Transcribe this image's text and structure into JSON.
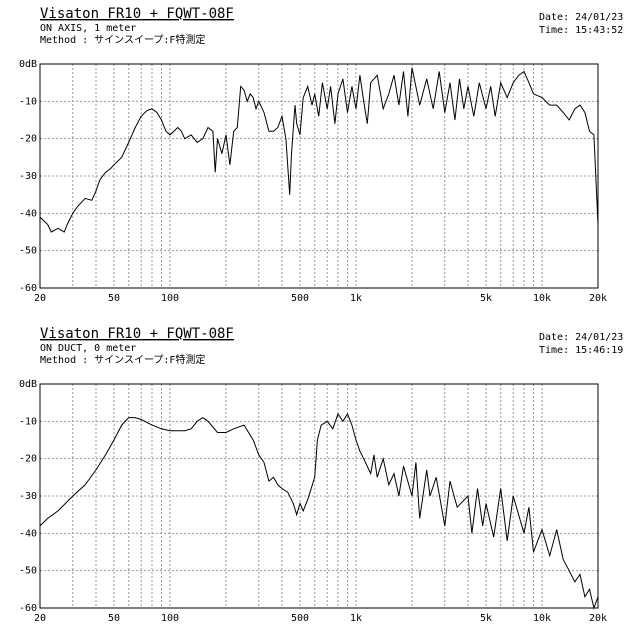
{
  "chart_data": [
    {
      "type": "line",
      "title": "Visaton FR10 + FQWT-08F",
      "annotations": [
        "ON AXIS, 1 meter",
        "Method : サインスイープ:F特測定"
      ],
      "date": "Date: 24/01/23",
      "time": "Time: 15:43:52",
      "xscale": "log",
      "grid": true,
      "color": "#000000",
      "xlim": [
        20,
        20000
      ],
      "ylim": [
        -60,
        0
      ],
      "xticks": [
        20,
        50,
        100,
        500,
        {
          "value": 1000,
          "label": "1k"
        },
        {
          "value": 5000,
          "label": "5k"
        },
        {
          "value": 10000,
          "label": "10k"
        },
        {
          "value": 20000,
          "label": "20k"
        }
      ],
      "yticks": [
        {
          "value": 0,
          "label": "0dB"
        },
        -10,
        -20,
        -30,
        -40,
        -50,
        -60
      ],
      "x": [
        20,
        22,
        23,
        25,
        27,
        28,
        30,
        32,
        35,
        38,
        40,
        42,
        45,
        48,
        50,
        55,
        60,
        65,
        70,
        75,
        80,
        85,
        90,
        95,
        100,
        105,
        110,
        115,
        120,
        130,
        140,
        150,
        160,
        170,
        175,
        180,
        190,
        200,
        210,
        220,
        230,
        240,
        250,
        260,
        270,
        280,
        290,
        300,
        320,
        340,
        360,
        380,
        400,
        420,
        440,
        450,
        470,
        480,
        500,
        520,
        550,
        580,
        600,
        630,
        660,
        700,
        730,
        770,
        800,
        850,
        900,
        950,
        1000,
        1050,
        1100,
        1150,
        1200,
        1300,
        1400,
        1500,
        1600,
        1700,
        1800,
        1900,
        2000,
        2200,
        2400,
        2600,
        2800,
        3000,
        3200,
        3400,
        3600,
        3800,
        4000,
        4300,
        4600,
        5000,
        5300,
        5600,
        6000,
        6500,
        7000,
        7500,
        8000,
        8500,
        9000,
        10000,
        11000,
        12000,
        13000,
        14000,
        15000,
        16000,
        17000,
        18000,
        19000,
        20000
      ],
      "values": [
        -41,
        -43,
        -45,
        -44,
        -45,
        -43,
        -40,
        -38,
        -36,
        -36.5,
        -34,
        -31,
        -29,
        -28,
        -27,
        -25,
        -21,
        -17,
        -14,
        -12.5,
        -12,
        -13,
        -15,
        -18,
        -19,
        -18,
        -17,
        -18,
        -20,
        -19,
        -21,
        -20,
        -17,
        -18,
        -29,
        -20,
        -24,
        -19,
        -27,
        -18,
        -17,
        -6,
        -7,
        -10,
        -8,
        -9,
        -12,
        -10,
        -13,
        -18,
        -18,
        -17,
        -14,
        -20,
        -35,
        -24,
        -11,
        -16,
        -19,
        -9,
        -6,
        -11,
        -8,
        -14,
        -5,
        -12,
        -6,
        -16,
        -8,
        -4,
        -13,
        -6,
        -12,
        -3,
        -10,
        -16,
        -5,
        -3,
        -12,
        -8,
        -3,
        -11,
        -2,
        -14,
        -1,
        -11,
        -4,
        -12,
        -2,
        -13,
        -5,
        -15,
        -4,
        -12,
        -6,
        -14,
        -5,
        -12,
        -6,
        -14,
        -5,
        -9,
        -5,
        -3,
        -2,
        -5,
        -8,
        -9,
        -11,
        -11,
        -13,
        -15,
        -12,
        -11,
        -13,
        -18,
        -19,
        -43
      ]
    },
    {
      "type": "line",
      "title": "Visaton FR10 + FQWT-08F",
      "annotations": [
        "ON DUCT, 0 meter",
        "Method : サインスイープ:F特測定"
      ],
      "date": "Date: 24/01/23",
      "time": "Time: 15:46:19",
      "xscale": "log",
      "grid": true,
      "color": "#000000",
      "xlim": [
        20,
        20000
      ],
      "ylim": [
        -60,
        0
      ],
      "xticks": [
        20,
        50,
        100,
        500,
        {
          "value": 1000,
          "label": "1k"
        },
        {
          "value": 5000,
          "label": "5k"
        },
        {
          "value": 10000,
          "label": "10k"
        },
        {
          "value": 20000,
          "label": "20k"
        }
      ],
      "yticks": [
        {
          "value": 0,
          "label": "0dB"
        },
        -10,
        -20,
        -30,
        -40,
        -50,
        -60
      ],
      "x": [
        20,
        22,
        25,
        30,
        35,
        40,
        45,
        50,
        55,
        60,
        65,
        70,
        80,
        90,
        100,
        120,
        130,
        140,
        150,
        160,
        180,
        200,
        220,
        250,
        280,
        300,
        320,
        340,
        360,
        380,
        400,
        430,
        460,
        480,
        500,
        520,
        550,
        600,
        620,
        650,
        700,
        750,
        800,
        850,
        900,
        950,
        1000,
        1050,
        1100,
        1200,
        1250,
        1300,
        1400,
        1500,
        1600,
        1700,
        1800,
        2000,
        2100,
        2200,
        2400,
        2500,
        2700,
        3000,
        3200,
        3500,
        4000,
        4200,
        4500,
        4800,
        5000,
        5500,
        6000,
        6500,
        7000,
        8000,
        8500,
        9000,
        10000,
        11000,
        12000,
        13000,
        14000,
        15000,
        16000,
        17000,
        18000,
        19000,
        20000
      ],
      "values": [
        -38,
        -36,
        -34,
        -30,
        -27,
        -23,
        -19,
        -15,
        -11,
        -9,
        -9,
        -9.5,
        -11,
        -12,
        -12.5,
        -12.5,
        -12,
        -10,
        -9,
        -10,
        -13,
        -13,
        -12,
        -11,
        -15,
        -19,
        -21,
        -26,
        -25,
        -27,
        -28,
        -29,
        -32,
        -35,
        -32,
        -34,
        -31,
        -25,
        -15,
        -11,
        -10,
        -12,
        -8,
        -10,
        -8,
        -11,
        -15,
        -18,
        -20,
        -24,
        -19,
        -25,
        -20,
        -27,
        -24,
        -30,
        -22,
        -30,
        -21,
        -36,
        -23,
        -30,
        -25,
        -38,
        -26,
        -33,
        -30,
        -40,
        -28,
        -38,
        -32,
        -41,
        -28,
        -42,
        -30,
        -40,
        -33,
        -45,
        -39,
        -46,
        -39,
        -47,
        -50,
        -53,
        -51,
        -57,
        -55,
        -60,
        -57
      ]
    }
  ]
}
